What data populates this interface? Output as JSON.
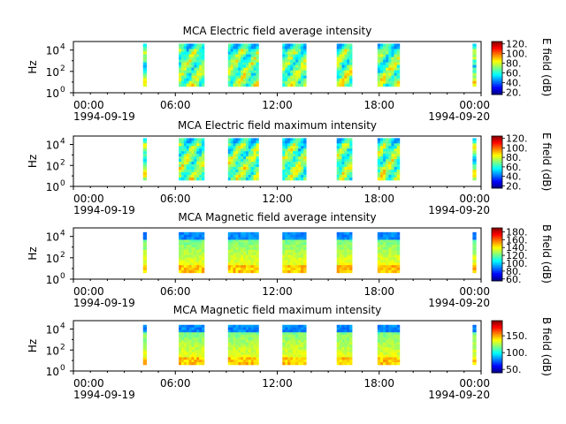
{
  "figure": {
    "x_tick_labels": [
      "00:00",
      "06:00",
      "12:00",
      "18:00",
      "00:00"
    ],
    "x_tick_hours": [
      0,
      6,
      12,
      18,
      24
    ],
    "date_start": "1994-09-19",
    "date_end": "1994-09-20",
    "y_ticks": [
      {
        "base": "10",
        "exp": "0"
      },
      {
        "base": "10",
        "exp": "2"
      },
      {
        "base": "10",
        "exp": "4"
      }
    ],
    "y_label": "Hz"
  },
  "chart_data": [
    {
      "type": "heatmap",
      "title": "MCA  Electric field average intensity",
      "xlabel": "",
      "ylabel": "Hz",
      "x_range_hours": [
        0,
        24
      ],
      "y_scale": "log",
      "y_range_exp": [
        0,
        4.8
      ],
      "colorbar": {
        "label": "E field (dB)",
        "ticks": [
          "20.",
          "40.",
          "60.",
          "80.",
          "100.",
          "120."
        ],
        "range": [
          15,
          125
        ]
      },
      "segments_hours": [
        [
          4.1,
          4.3
        ],
        [
          6.2,
          7.7
        ],
        [
          9.1,
          10.9
        ],
        [
          12.3,
          13.7
        ],
        [
          15.5,
          16.4
        ],
        [
          17.9,
          19.2
        ],
        [
          23.5,
          23.7
        ]
      ],
      "y_top_exp": 4.6,
      "value_range_db": [
        40,
        100
      ]
    },
    {
      "type": "heatmap",
      "title": "MCA  Electric field maximum intensity",
      "xlabel": "",
      "ylabel": "Hz",
      "x_range_hours": [
        0,
        24
      ],
      "y_scale": "log",
      "y_range_exp": [
        0,
        4.8
      ],
      "colorbar": {
        "label": "E field (dB)",
        "ticks": [
          "20.",
          "40.",
          "60.",
          "80.",
          "100.",
          "120."
        ],
        "range": [
          15,
          125
        ]
      },
      "segments_hours": [
        [
          4.1,
          4.3
        ],
        [
          6.2,
          7.7
        ],
        [
          9.1,
          10.9
        ],
        [
          12.3,
          13.7
        ],
        [
          15.5,
          16.4
        ],
        [
          17.9,
          19.2
        ],
        [
          23.5,
          23.7
        ]
      ],
      "y_top_exp": 4.6,
      "value_range_db": [
        50,
        105
      ]
    },
    {
      "type": "heatmap",
      "title": "MCA  Magnetic field average intensity",
      "xlabel": "",
      "ylabel": "Hz",
      "x_range_hours": [
        0,
        24
      ],
      "y_scale": "log",
      "y_range_exp": [
        0,
        4.8
      ],
      "colorbar": {
        "label": "B field (dB)",
        "ticks": [
          "60.",
          "80.",
          "100.",
          "120.",
          "140.",
          "160.",
          "180."
        ],
        "range": [
          55,
          190
        ]
      },
      "segments_hours": [
        [
          4.1,
          4.3
        ],
        [
          6.2,
          7.7
        ],
        [
          9.1,
          10.9
        ],
        [
          12.3,
          13.7
        ],
        [
          15.5,
          16.4
        ],
        [
          17.9,
          19.2
        ],
        [
          23.5,
          23.7
        ]
      ],
      "y_top_exp": 4.4,
      "value_range_db": [
        80,
        150
      ]
    },
    {
      "type": "heatmap",
      "title": "MCA  Magnetic field maximum intensity",
      "xlabel": "",
      "ylabel": "Hz",
      "x_range_hours": [
        0,
        24
      ],
      "y_scale": "log",
      "y_range_exp": [
        0,
        4.8
      ],
      "colorbar": {
        "label": "B field (dB)",
        "ticks": [
          "50.",
          "100.",
          "150."
        ],
        "range": [
          40,
          195
        ]
      },
      "segments_hours": [
        [
          4.1,
          4.3
        ],
        [
          6.2,
          7.7
        ],
        [
          9.1,
          10.9
        ],
        [
          12.3,
          13.7
        ],
        [
          15.5,
          16.4
        ],
        [
          17.9,
          19.2
        ],
        [
          23.5,
          23.7
        ]
      ],
      "y_top_exp": 4.4,
      "value_range_db": [
        80,
        150
      ]
    }
  ]
}
